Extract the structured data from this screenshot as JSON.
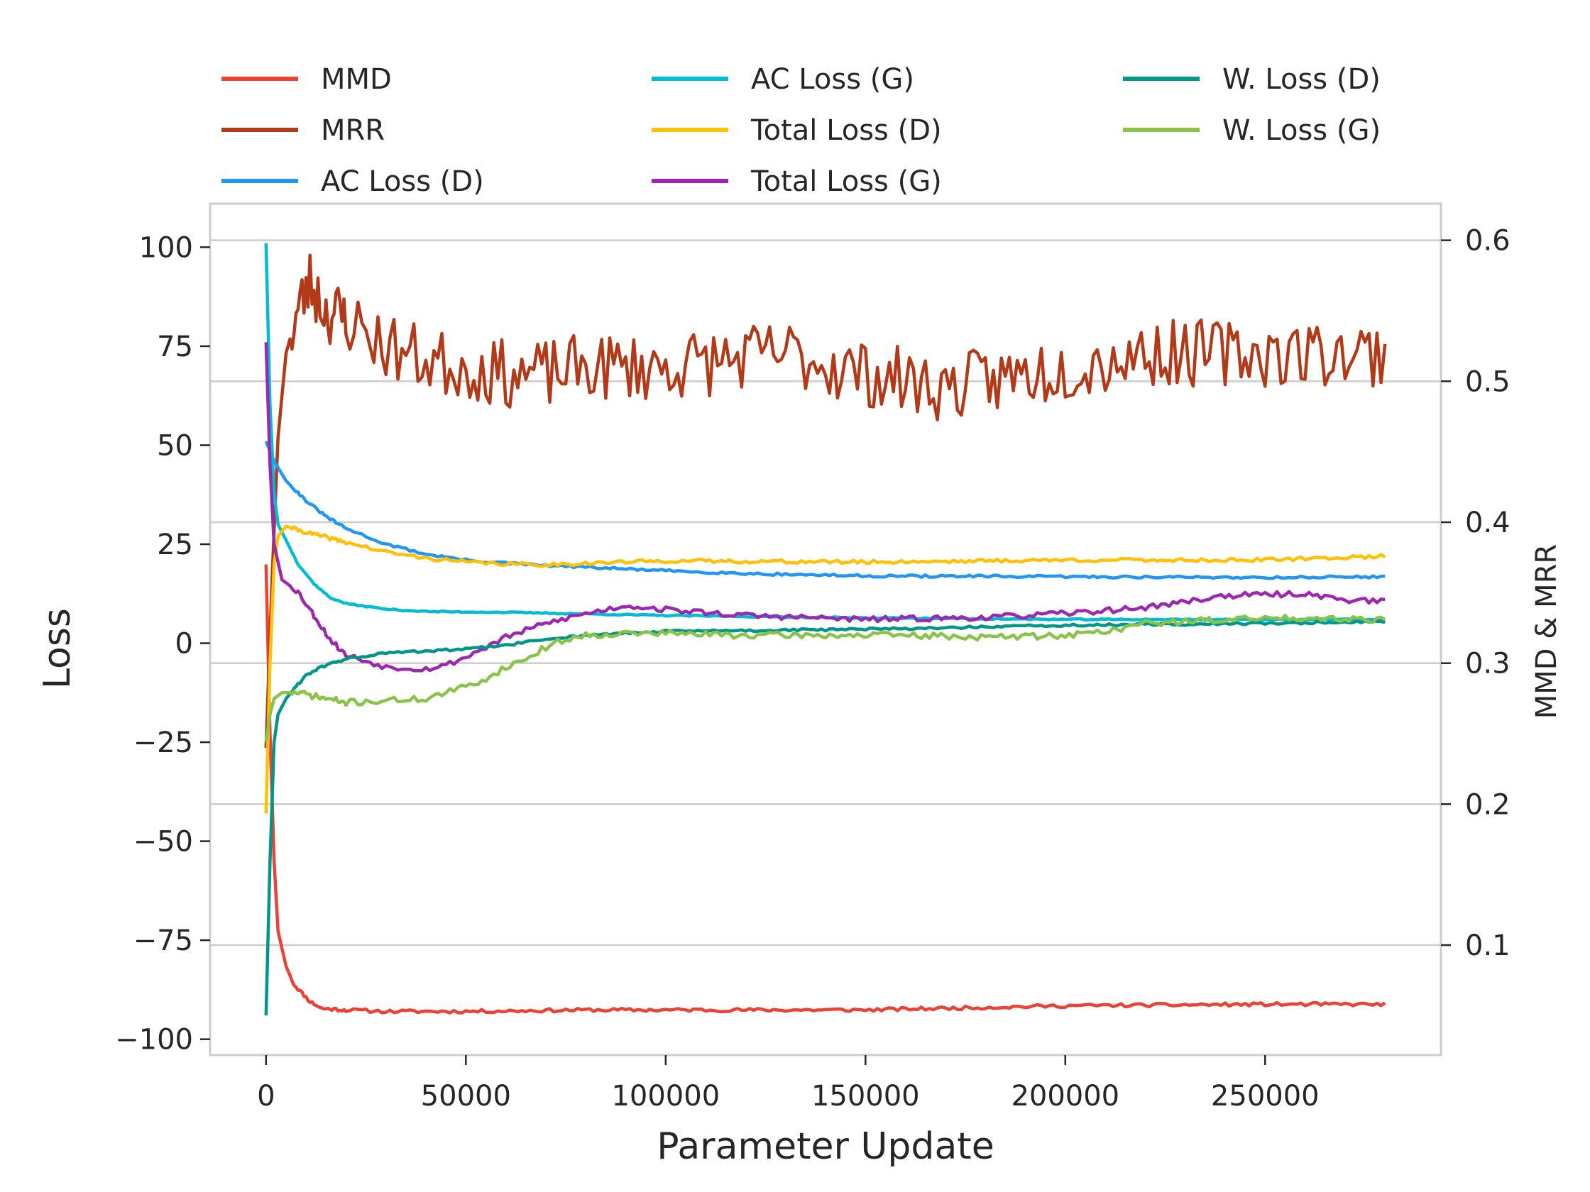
{
  "chart_data": {
    "type": "line",
    "xlabel": "Parameter Update",
    "ylabel": "Loss",
    "y2label": "MMD & MRR",
    "xlim": [
      -14000,
      294000
    ],
    "ylim": [
      -104,
      111
    ],
    "y2lim": [
      0.022,
      0.626
    ],
    "x_ticks": [
      0,
      50000,
      100000,
      150000,
      200000,
      250000
    ],
    "y_ticks": [
      100,
      75,
      50,
      25,
      0,
      -25,
      -50,
      -75,
      -100
    ],
    "y_tick_labels": [
      "100",
      "75",
      "50",
      "25",
      "0",
      "−25",
      "−50",
      "−75",
      "−100"
    ],
    "y2_ticks": [
      0.6,
      0.5,
      0.4,
      0.3,
      0.2,
      0.1
    ],
    "y2_tick_labels": [
      "0.6",
      "0.5",
      "0.4",
      "0.3",
      "0.2",
      "0.1"
    ],
    "grid": "right-axis horizontal lines",
    "legend_placement": "top, above plot, 3 columns",
    "legend_columns": [
      [
        "MMD",
        "MRR",
        "AC Loss (D)"
      ],
      [
        "AC Loss (G)",
        "Total Loss (D)",
        "Total Loss (G)"
      ],
      [
        "W. Loss (D)",
        "W. Loss (G)"
      ]
    ],
    "series": [
      {
        "name": "MMD",
        "color": "#EA4335",
        "axis": "right",
        "noise": 0.0012,
        "seed": 11,
        "points": [
          [
            0,
            0.37
          ],
          [
            1000,
            0.25
          ],
          [
            2000,
            0.16
          ],
          [
            3000,
            0.11
          ],
          [
            5000,
            0.085
          ],
          [
            7000,
            0.072
          ],
          [
            9000,
            0.066
          ],
          [
            11000,
            0.06
          ],
          [
            14000,
            0.055
          ],
          [
            20000,
            0.054
          ],
          [
            30000,
            0.053
          ],
          [
            50000,
            0.053
          ],
          [
            80000,
            0.054
          ],
          [
            100000,
            0.054
          ],
          [
            150000,
            0.054
          ],
          [
            200000,
            0.057
          ],
          [
            250000,
            0.058
          ],
          [
            280000,
            0.058
          ]
        ]
      },
      {
        "name": "MRR",
        "color": "#B23A18",
        "axis": "right",
        "noise": 0.024,
        "seed": 23,
        "points": [
          [
            0,
            0.24
          ],
          [
            1500,
            0.36
          ],
          [
            3000,
            0.46
          ],
          [
            5000,
            0.52
          ],
          [
            8000,
            0.55
          ],
          [
            11000,
            0.57
          ],
          [
            15000,
            0.55
          ],
          [
            20000,
            0.545
          ],
          [
            30000,
            0.525
          ],
          [
            40000,
            0.515
          ],
          [
            50000,
            0.51
          ],
          [
            60000,
            0.505
          ],
          [
            70000,
            0.505
          ],
          [
            80000,
            0.51
          ],
          [
            100000,
            0.51
          ],
          [
            130000,
            0.52
          ],
          [
            150000,
            0.505
          ],
          [
            170000,
            0.495
          ],
          [
            180000,
            0.5
          ],
          [
            200000,
            0.51
          ],
          [
            220000,
            0.52
          ],
          [
            250000,
            0.52
          ],
          [
            280000,
            0.52
          ]
        ]
      },
      {
        "name": "AC Loss (D)",
        "color": "#2196F3",
        "axis": "left",
        "noise": 0.3,
        "seed": 31,
        "points": [
          [
            0,
            51
          ],
          [
            2000,
            46
          ],
          [
            5000,
            41
          ],
          [
            10000,
            36
          ],
          [
            15000,
            32
          ],
          [
            20000,
            29
          ],
          [
            30000,
            25
          ],
          [
            40000,
            22.5
          ],
          [
            50000,
            21
          ],
          [
            60000,
            20.2
          ],
          [
            70000,
            19.6
          ],
          [
            80000,
            19.2
          ],
          [
            100000,
            18.3
          ],
          [
            120000,
            17.6
          ],
          [
            150000,
            17
          ],
          [
            200000,
            16.8
          ],
          [
            250000,
            16.6
          ],
          [
            280000,
            16.8
          ]
        ]
      },
      {
        "name": "AC Loss (G)",
        "color": "#00BCD4",
        "axis": "left",
        "noise": 0.15,
        "seed": 37,
        "points": [
          [
            0,
            101
          ],
          [
            1000,
            60
          ],
          [
            2000,
            38
          ],
          [
            3000,
            30
          ],
          [
            5000,
            26
          ],
          [
            8000,
            20
          ],
          [
            12000,
            15
          ],
          [
            16000,
            11.5
          ],
          [
            20000,
            10
          ],
          [
            30000,
            8.6
          ],
          [
            40000,
            8
          ],
          [
            60000,
            7.8
          ],
          [
            80000,
            7.4
          ],
          [
            100000,
            7
          ],
          [
            150000,
            6.4
          ],
          [
            200000,
            6
          ],
          [
            250000,
            6
          ],
          [
            280000,
            6
          ]
        ]
      },
      {
        "name": "Total Loss (D)",
        "color": "#FFC107",
        "axis": "left",
        "noise": 0.45,
        "seed": 41,
        "points": [
          [
            0,
            -43
          ],
          [
            1000,
            -5
          ],
          [
            2000,
            20
          ],
          [
            3000,
            27
          ],
          [
            5000,
            29.5
          ],
          [
            10000,
            28
          ],
          [
            20000,
            25.5
          ],
          [
            30000,
            23
          ],
          [
            40000,
            21.5
          ],
          [
            50000,
            20.5
          ],
          [
            60000,
            20
          ],
          [
            70000,
            19.8
          ],
          [
            80000,
            20.2
          ],
          [
            100000,
            20.8
          ],
          [
            150000,
            20.5
          ],
          [
            200000,
            21
          ],
          [
            250000,
            21
          ],
          [
            280000,
            22
          ]
        ]
      },
      {
        "name": "Total Loss (G)",
        "color": "#9C27B0",
        "axis": "left",
        "noise": 0.7,
        "seed": 53,
        "points": [
          [
            0,
            76
          ],
          [
            1000,
            45
          ],
          [
            2000,
            25
          ],
          [
            4000,
            16
          ],
          [
            8000,
            13
          ],
          [
            12000,
            7
          ],
          [
            16000,
            1
          ],
          [
            20000,
            -3
          ],
          [
            25000,
            -4.5
          ],
          [
            30000,
            -6
          ],
          [
            40000,
            -6.5
          ],
          [
            45000,
            -5.5
          ],
          [
            50000,
            -3.5
          ],
          [
            55000,
            -1
          ],
          [
            60000,
            1.5
          ],
          [
            70000,
            5
          ],
          [
            80000,
            7.5
          ],
          [
            90000,
            9.5
          ],
          [
            100000,
            8.5
          ],
          [
            120000,
            7
          ],
          [
            150000,
            6
          ],
          [
            180000,
            6.5
          ],
          [
            200000,
            7.5
          ],
          [
            220000,
            9
          ],
          [
            240000,
            12
          ],
          [
            260000,
            12.5
          ],
          [
            270000,
            11
          ],
          [
            280000,
            10.5
          ]
        ]
      },
      {
        "name": "W. Loss (D)",
        "color": "#009688",
        "axis": "left",
        "noise": 0.3,
        "seed": 61,
        "points": [
          [
            0,
            -94
          ],
          [
            1000,
            -55
          ],
          [
            2000,
            -25
          ],
          [
            3000,
            -18
          ],
          [
            5000,
            -14
          ],
          [
            10000,
            -8
          ],
          [
            15000,
            -5.5
          ],
          [
            20000,
            -4
          ],
          [
            30000,
            -2.5
          ],
          [
            50000,
            -1.5
          ],
          [
            60000,
            -0.5
          ],
          [
            70000,
            1
          ],
          [
            80000,
            2
          ],
          [
            100000,
            3
          ],
          [
            150000,
            3.5
          ],
          [
            200000,
            4.5
          ],
          [
            250000,
            5
          ],
          [
            280000,
            5.5
          ]
        ]
      },
      {
        "name": "W. Loss (G)",
        "color": "#8BC34A",
        "axis": "left",
        "noise": 0.8,
        "seed": 71,
        "points": [
          [
            0,
            -25
          ],
          [
            1000,
            -18
          ],
          [
            2000,
            -14
          ],
          [
            4000,
            -12.5
          ],
          [
            8000,
            -12.5
          ],
          [
            15000,
            -14
          ],
          [
            20000,
            -15
          ],
          [
            30000,
            -14.5
          ],
          [
            40000,
            -14
          ],
          [
            45000,
            -12.5
          ],
          [
            50000,
            -11
          ],
          [
            55000,
            -9
          ],
          [
            60000,
            -6
          ],
          [
            65000,
            -4
          ],
          [
            70000,
            -1
          ],
          [
            75000,
            1
          ],
          [
            80000,
            2
          ],
          [
            90000,
            2.5
          ],
          [
            100000,
            2.5
          ],
          [
            120000,
            2
          ],
          [
            140000,
            2
          ],
          [
            160000,
            2
          ],
          [
            180000,
            1.5
          ],
          [
            200000,
            2
          ],
          [
            210000,
            3
          ],
          [
            220000,
            5
          ],
          [
            240000,
            6
          ],
          [
            260000,
            6.5
          ],
          [
            280000,
            6
          ]
        ]
      }
    ]
  }
}
